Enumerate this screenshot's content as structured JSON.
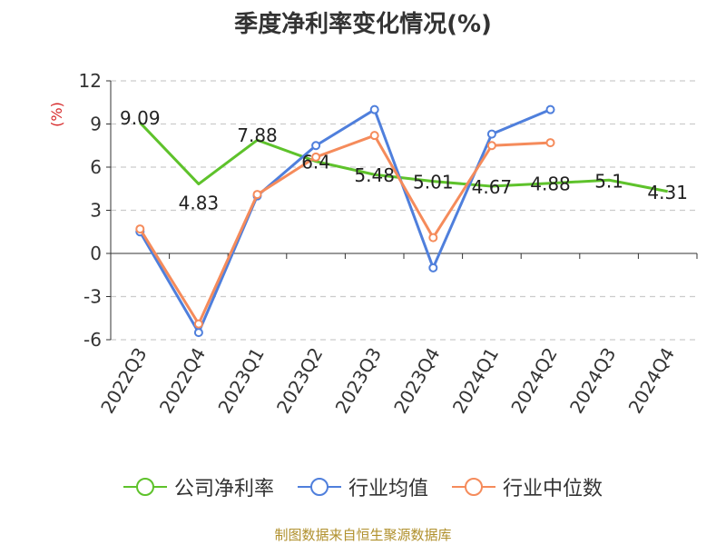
{
  "title": "季度净利率变化情况(%)",
  "source": "制图数据来自恒生聚源数据库",
  "chart_data": {
    "type": "line",
    "ylabel": "(%)",
    "ylim": [
      -6,
      12
    ],
    "yticks": [
      "12",
      "9",
      "6",
      "3",
      "0",
      "-3",
      "-6"
    ],
    "categories": [
      "2022Q3",
      "2022Q4",
      "2023Q1",
      "2023Q2",
      "2023Q3",
      "2023Q4",
      "2024Q1",
      "2024Q2",
      "2024Q3",
      "2024Q4"
    ],
    "grid": true,
    "legend_position": "bottom",
    "series": [
      {
        "name": "公司净利率",
        "color": "#5ec22b",
        "values": [
          9.09,
          4.83,
          7.88,
          6.4,
          5.48,
          5.01,
          4.67,
          4.88,
          5.1,
          4.31
        ],
        "labels": [
          "9.09",
          "4.83",
          "7.88",
          "6.4",
          "5.48",
          "5.01",
          "4.67",
          "4.88",
          "5.1",
          "4.31"
        ],
        "markers": false
      },
      {
        "name": "行业均值",
        "color": "#4f7fdc",
        "values": [
          1.5,
          -5.5,
          4.0,
          7.5,
          10.0,
          -1.0,
          8.3,
          10.0,
          null,
          null
        ],
        "markers": true
      },
      {
        "name": "行业中位数",
        "color": "#f58b5b",
        "values": [
          1.7,
          -4.9,
          4.1,
          6.7,
          8.2,
          1.1,
          7.5,
          7.7,
          null,
          null
        ],
        "markers": true
      }
    ]
  }
}
